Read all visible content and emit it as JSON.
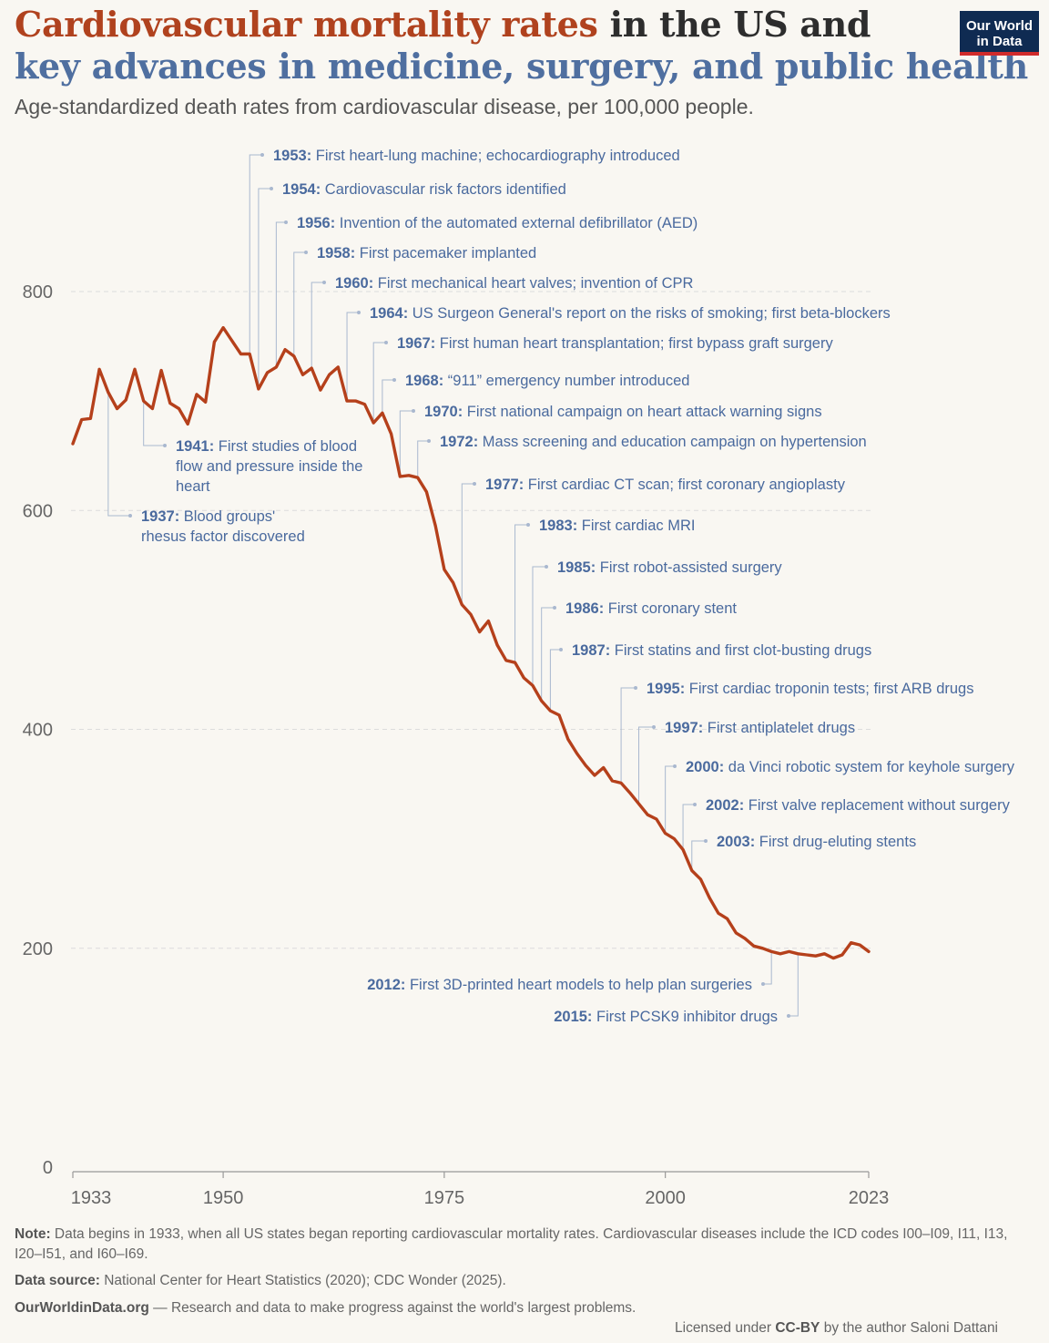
{
  "header": {
    "title_part1": "Cardiovascular mortality rates",
    "title_part2": " in the US and",
    "title_part3": "key advances in medicine, surgery, and public health",
    "subtitle": "Age-standardized death rates from cardiovascular disease, per 100,000 people.",
    "logo_line1": "Our World",
    "logo_line2": "in Data"
  },
  "footer": {
    "note_label": "Note:",
    "note_text": " Data begins in 1933, when all US states began reporting cardiovascular mortality rates. Cardiovascular diseases include the ICD codes I00–I09, I11, I13, I20–I51, and I60–I69.",
    "source_label": "Data source:",
    "source_text": " National Center for Heart Statistics (2020); CDC Wonder (2025).",
    "site_label": "OurWorldinData.org",
    "site_text": " — Research and data to make progress against the world's largest problems.",
    "license_prefix": "Licensed under ",
    "license_bold": "CC-BY",
    "license_suffix": " by the author Saloni Dattani"
  },
  "colors": {
    "line": "#b5401b",
    "annotation": "#4a6a9e",
    "leader": "#a9b8cf",
    "grid": "#dcdcdc"
  },
  "chart_data": {
    "type": "line",
    "title": "Cardiovascular mortality rates in the US",
    "ylabel": "Age-standardized death rate per 100,000",
    "ylim": [
      0,
      800
    ],
    "yticks": [
      0,
      200,
      400,
      600,
      800
    ],
    "xticks": [
      1933,
      1950,
      1975,
      2000,
      2023
    ],
    "x": [
      1933,
      1934,
      1935,
      1936,
      1937,
      1938,
      1939,
      1940,
      1941,
      1942,
      1943,
      1944,
      1945,
      1946,
      1947,
      1948,
      1949,
      1950,
      1951,
      1952,
      1953,
      1954,
      1955,
      1956,
      1957,
      1958,
      1959,
      1960,
      1961,
      1962,
      1963,
      1964,
      1965,
      1966,
      1967,
      1968,
      1969,
      1970,
      1971,
      1972,
      1973,
      1974,
      1975,
      1976,
      1977,
      1978,
      1979,
      1980,
      1981,
      1982,
      1983,
      1984,
      1985,
      1986,
      1987,
      1988,
      1989,
      1990,
      1991,
      1992,
      1993,
      1994,
      1995,
      1996,
      1997,
      1998,
      1999,
      2000,
      2001,
      2002,
      2003,
      2004,
      2005,
      2006,
      2007,
      2008,
      2009,
      2010,
      2011,
      2012,
      2013,
      2014,
      2015,
      2016,
      2017,
      2018,
      2019,
      2020,
      2021,
      2022,
      2023
    ],
    "values": [
      661,
      683,
      684,
      729,
      708,
      693,
      701,
      729,
      700,
      693,
      728,
      698,
      693,
      679,
      706,
      699,
      754,
      767,
      755,
      743,
      743,
      711,
      726,
      731,
      747,
      741,
      724,
      730,
      710,
      724,
      731,
      700,
      700,
      697,
      680,
      689,
      670,
      631,
      632,
      630,
      617,
      586,
      546,
      534,
      514,
      505,
      489,
      499,
      477,
      463,
      461,
      447,
      440,
      426,
      417,
      413,
      391,
      378,
      367,
      358,
      365,
      353,
      351,
      342,
      332,
      322,
      318,
      305,
      300,
      290,
      271,
      263,
      246,
      232,
      227,
      214,
      209,
      202,
      200,
      197,
      195,
      197,
      195,
      194,
      193,
      195,
      191,
      194,
      205,
      203,
      197
    ],
    "annotations": [
      {
        "year": 1937,
        "line1_year": "1937:",
        "line1_text": " Blood groups'",
        "line2": "rhesus factor discovered",
        "line3": ""
      },
      {
        "year": 1941,
        "line1_year": "1941:",
        "line1_text": " First studies of blood",
        "line2": "flow and pressure inside the",
        "line3": "heart"
      },
      {
        "year": 1953,
        "line1_year": "1953:",
        "line1_text": " First heart-lung machine; echocardiography introduced"
      },
      {
        "year": 1954,
        "line1_year": "1954:",
        "line1_text": " Cardiovascular risk factors identified"
      },
      {
        "year": 1956,
        "line1_year": "1956:",
        "line1_text": " Invention of the automated external defibrillator (AED)"
      },
      {
        "year": 1958,
        "line1_year": "1958:",
        "line1_text": " First pacemaker implanted"
      },
      {
        "year": 1960,
        "line1_year": "1960:",
        "line1_text": " First mechanical heart valves; invention of CPR"
      },
      {
        "year": 1964,
        "line1_year": "1964:",
        "line1_text": " US Surgeon General's report on the risks of smoking; first beta-blockers"
      },
      {
        "year": 1967,
        "line1_year": "1967:",
        "line1_text": " First human heart transplantation; first bypass graft surgery"
      },
      {
        "year": 1968,
        "line1_year": "1968:",
        "line1_text": " “911” emergency number introduced"
      },
      {
        "year": 1970,
        "line1_year": "1970:",
        "line1_text": " First national campaign on heart attack warning signs"
      },
      {
        "year": 1972,
        "line1_year": "1972:",
        "line1_text": " Mass screening and education campaign on hypertension"
      },
      {
        "year": 1977,
        "line1_year": "1977:",
        "line1_text": " First cardiac CT scan; first coronary angioplasty"
      },
      {
        "year": 1983,
        "line1_year": "1983:",
        "line1_text": " First cardiac MRI"
      },
      {
        "year": 1985,
        "line1_year": "1985:",
        "line1_text": " First robot-assisted surgery"
      },
      {
        "year": 1986,
        "line1_year": "1986:",
        "line1_text": " First coronary stent"
      },
      {
        "year": 1987,
        "line1_year": "1987:",
        "line1_text": " First statins and first clot-busting drugs"
      },
      {
        "year": 1995,
        "line1_year": "1995:",
        "line1_text": " First cardiac troponin tests; first ARB drugs"
      },
      {
        "year": 1997,
        "line1_year": "1997:",
        "line1_text": " First antiplatelet drugs"
      },
      {
        "year": 2000,
        "line1_year": "2000:",
        "line1_text": " da Vinci robotic system for keyhole surgery"
      },
      {
        "year": 2002,
        "line1_year": "2002:",
        "line1_text": " First valve replacement without surgery"
      },
      {
        "year": 2003,
        "line1_year": "2003:",
        "line1_text": " First drug-eluting stents"
      },
      {
        "year": 2012,
        "line1_year": "2012:",
        "line1_text": " First 3D-printed heart models to help plan surgeries"
      },
      {
        "year": 2015,
        "line1_year": "2015:",
        "line1_text": " First PCSK9 inhibitor drugs"
      }
    ]
  }
}
